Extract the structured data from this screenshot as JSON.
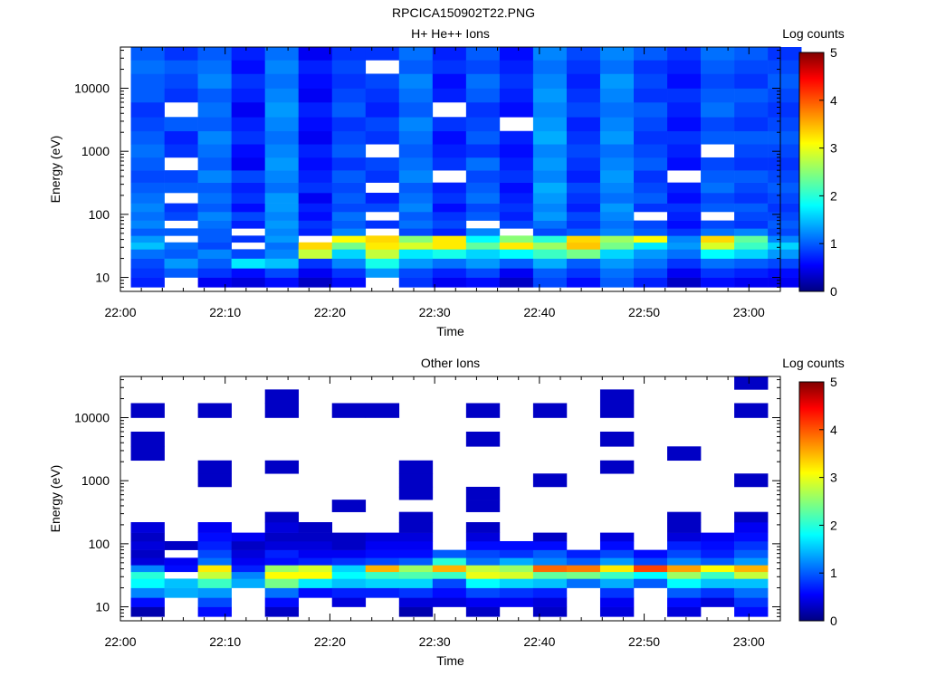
{
  "page_title": "RPCICA150902T22.PNG",
  "chart_data": [
    {
      "type": "heatmap",
      "title": "H+ He++ Ions",
      "xlabel": "Time",
      "ylabel": "Energy (eV)",
      "x_ticks": [
        "22:00",
        "22:10",
        "22:20",
        "22:30",
        "22:40",
        "22:50",
        "23:00"
      ],
      "x_range_minutes": [
        0,
        63
      ],
      "y_scale": "log",
      "y_range": [
        6,
        45000
      ],
      "y_ticks": [
        {
          "value": 10,
          "label": "10"
        },
        {
          "value": 100,
          "label": "100"
        },
        {
          "value": 1000,
          "label": "1000"
        },
        {
          "value": 10000,
          "label": "10000"
        }
      ],
      "colorbar": {
        "label": "Log counts",
        "min": 0,
        "max": 5,
        "ticks": [
          "0",
          "1",
          "2",
          "3",
          "4",
          "5"
        ],
        "colormap": "jet"
      },
      "time_bins_minutes": [
        1,
        4.2,
        7.4,
        10.6,
        13.8,
        17,
        20.2,
        23.4,
        26.6,
        29.8,
        33,
        36.2,
        39.4,
        42.6,
        45.8,
        49,
        52.2,
        55.4,
        58.6,
        61.8
      ],
      "energy_bins_eV": [
        7,
        10,
        14,
        20,
        28,
        36,
        46,
        60,
        80,
        110,
        150,
        220,
        320,
        500,
        800,
        1300,
        2100,
        3500,
        6000,
        10000,
        17000,
        28000,
        45000
      ],
      "log_counts": [
        [
          0.7,
          0.8,
          0.9,
          1.1,
          1.5,
          1.3,
          1.0,
          1.2,
          1.1,
          1.2,
          1.1,
          1.0,
          0.9,
          1.0,
          1.1,
          1.0,
          0.9,
          0.8,
          1.0,
          1.0,
          1.1,
          1.0
        ],
        [
          null,
          1.0,
          1.3,
          1.0,
          1.1,
          null,
          1.0,
          null,
          0.9,
          0.8,
          null,
          1.0,
          0.9,
          null,
          0.8,
          0.7,
          1.0,
          null,
          0.8,
          0.9,
          1.0,
          0.8
        ],
        [
          0.5,
          0.8,
          1.0,
          1.2,
          0.9,
          1.0,
          1.0,
          1.1,
          1.2,
          1.0,
          1.1,
          1.0,
          1.2,
          1.0,
          1.1,
          1.2,
          1.0,
          1.1,
          1.0,
          1.2,
          1.1,
          1.0
        ],
        [
          0.4,
          0.6,
          1.7,
          0.9,
          null,
          0.8,
          null,
          0.7,
          0.9,
          0.6,
          0.8,
          0.7,
          0.9,
          0.5,
          0.6,
          0.8,
          0.7,
          0.5,
          0.7,
          0.8,
          0.6,
          0.7
        ],
        [
          0.6,
          0.9,
          1.5,
          1.2,
          1.1,
          1.3,
          1.2,
          1.3,
          1.2,
          1.3,
          1.3,
          1.1,
          1.2,
          1.3,
          1.2,
          1.1,
          1.2,
          1.3,
          1.2,
          1.1,
          1.2,
          1.1
        ],
        [
          0.3,
          0.5,
          0.8,
          2.8,
          3.3,
          null,
          0.7,
          0.8,
          0.6,
          0.7,
          0.5,
          0.8,
          0.7,
          0.6,
          0.7,
          0.5,
          0.6,
          0.7,
          0.5,
          0.6,
          0.7,
          0.5
        ],
        [
          0.6,
          0.8,
          1.2,
          1.6,
          2.4,
          3.1,
          1.2,
          1.0,
          1.1,
          0.9,
          1.0,
          0.9,
          1.0,
          0.8,
          1.0,
          0.9,
          0.8,
          1.0,
          0.9,
          0.8,
          0.9,
          0.8
        ],
        [
          null,
          1.3,
          1.9,
          2.8,
          3.2,
          3.3,
          null,
          0.8,
          null,
          0.9,
          0.7,
          null,
          0.8,
          0.9,
          null,
          0.8,
          0.9,
          0.7,
          0.8,
          0.9,
          null,
          0.8
        ],
        [
          0.8,
          0.9,
          1.3,
          1.7,
          2.9,
          2.5,
          0.9,
          1.1,
          1.0,
          1.2,
          1.1,
          1.0,
          1.2,
          1.1,
          1.0,
          1.1,
          1.2,
          1.0,
          1.1,
          1.2,
          1.0,
          1.1
        ],
        [
          0.5,
          0.7,
          1.1,
          1.9,
          3.2,
          3.2,
          0.7,
          0.9,
          0.8,
          0.6,
          0.8,
          0.7,
          null,
          0.8,
          0.7,
          0.6,
          0.8,
          null,
          0.7,
          0.6,
          0.8,
          0.7
        ],
        [
          0.6,
          0.9,
          1.3,
          1.6,
          2.3,
          1.8,
          1.2,
          null,
          1.0,
          0.9,
          1.1,
          1.0,
          0.9,
          1.1,
          0.8,
          1.0,
          0.9,
          0.8,
          1.0,
          1.1,
          0.9,
          1.0
        ],
        [
          0.3,
          0.5,
          1.0,
          1.8,
          3.2,
          2.5,
          null,
          0.9,
          0.7,
          0.8,
          0.7,
          0.6,
          0.8,
          0.7,
          0.6,
          0.7,
          null,
          0.6,
          0.7,
          0.8,
          0.7,
          0.6
        ],
        [
          0.9,
          1.0,
          1.4,
          2.1,
          2.6,
          2.0,
          0.9,
          1.1,
          1.3,
          1.2,
          1.3,
          1.4,
          1.2,
          1.3,
          1.2,
          1.4,
          1.3,
          1.2,
          1.3,
          1.2,
          1.1,
          1.2
        ],
        [
          0.6,
          0.8,
          1.0,
          2.4,
          3.4,
          3.3,
          1.0,
          0.8,
          0.9,
          0.7,
          0.8,
          0.9,
          0.7,
          0.8,
          0.9,
          0.8,
          0.7,
          0.9,
          0.8,
          0.7,
          0.8,
          0.9
        ],
        [
          1.0,
          1.1,
          1.3,
          1.6,
          2.4,
          2.6,
          1.2,
          1.1,
          1.2,
          1.3,
          1.1,
          1.2,
          1.3,
          1.2,
          1.1,
          1.3,
          1.2,
          1.1,
          1.2,
          1.3,
          1.1,
          1.2
        ],
        [
          0.7,
          0.9,
          1.1,
          1.3,
          1.7,
          3.1,
          1.0,
          0.9,
          null,
          0.8,
          1.0,
          0.9,
          0.8,
          1.0,
          0.9,
          0.8,
          0.9,
          1.0,
          0.8,
          0.9,
          0.8,
          1.0
        ],
        [
          0.3,
          0.5,
          0.8,
          1.1,
          1.3,
          1.2,
          0.8,
          0.6,
          0.7,
          0.8,
          0.6,
          0.7,
          null,
          0.6,
          0.7,
          0.8,
          0.6,
          0.7,
          0.8,
          0.6,
          0.7,
          0.8
        ],
        [
          0.6,
          0.8,
          1.1,
          1.8,
          2.9,
          3.3,
          1.1,
          0.9,
          null,
          1.0,
          0.9,
          1.1,
          1.0,
          0.9,
          null,
          1.0,
          0.9,
          1.1,
          1.0,
          0.9,
          1.0,
          1.1
        ],
        [
          0.5,
          0.7,
          1.0,
          1.6,
          2.1,
          2.3,
          1.2,
          0.8,
          0.9,
          1.0,
          0.8,
          0.9,
          1.0,
          0.8,
          0.9,
          1.0,
          0.8,
          0.9,
          1.0,
          0.8,
          0.9,
          1.0
        ],
        [
          0.5,
          0.6,
          0.9,
          1.3,
          1.6,
          1.2,
          0.9,
          1.0,
          0.9,
          0.8,
          0.9,
          1.0,
          0.9,
          0.8,
          0.9,
          1.0,
          0.9,
          0.8,
          0.9,
          1.0,
          0.9,
          0.8
        ]
      ]
    },
    {
      "type": "heatmap",
      "title": "Other Ions",
      "xlabel": "Time",
      "ylabel": "Energy (eV)",
      "x_ticks": [
        "22:00",
        "22:10",
        "22:20",
        "22:30",
        "22:40",
        "22:50",
        "23:00"
      ],
      "x_range_minutes": [
        0,
        63
      ],
      "y_scale": "log",
      "y_range": [
        6,
        45000
      ],
      "y_ticks": [
        {
          "value": 10,
          "label": "10"
        },
        {
          "value": 100,
          "label": "100"
        },
        {
          "value": 1000,
          "label": "1000"
        },
        {
          "value": 10000,
          "label": "10000"
        }
      ],
      "colorbar": {
        "label": "Log counts",
        "min": 0,
        "max": 5,
        "ticks": [
          "0",
          "1",
          "2",
          "3",
          "4",
          "5"
        ],
        "colormap": "jet"
      },
      "time_bins_minutes": [
        1,
        4.2,
        7.4,
        10.6,
        13.8,
        17,
        20.2,
        23.4,
        26.6,
        29.8,
        33,
        36.2,
        39.4,
        42.6,
        45.8,
        49,
        52.2,
        55.4,
        58.6,
        61.8
      ],
      "energy_bins_eV": [
        7,
        10,
        14,
        20,
        28,
        36,
        46,
        60,
        80,
        110,
        150,
        220,
        320,
        500,
        800,
        1300,
        2100,
        3500,
        6000,
        10000,
        17000,
        28000,
        45000
      ],
      "log_counts": [
        [
          0.2,
          0.6,
          1.2,
          1.8,
          2.0,
          1.2,
          0.4,
          0.3,
          0.4,
          0.3,
          0.4,
          null,
          null,
          null,
          null,
          null,
          0.3,
          0.3,
          null,
          0.3,
          null,
          null
        ],
        [
          null,
          null,
          1.4,
          1.5,
          null,
          0.6,
          0.5,
          null,
          0.3,
          null,
          null,
          null,
          null,
          null,
          null,
          null,
          null,
          null,
          null,
          null,
          null,
          null
        ],
        [
          0.6,
          0.9,
          1.3,
          2.1,
          2.8,
          3.2,
          1.1,
          0.9,
          0.7,
          0.6,
          0.5,
          null,
          null,
          null,
          0.3,
          0.3,
          null,
          null,
          null,
          0.3,
          null,
          null
        ],
        [
          null,
          null,
          null,
          1.4,
          1.2,
          0.7,
          0.5,
          0.4,
          0.3,
          0.5,
          null,
          null,
          null,
          null,
          null,
          null,
          null,
          null,
          null,
          null,
          null,
          null
        ],
        [
          0.3,
          0.6,
          1.1,
          2.4,
          3.1,
          2.6,
          0.6,
          0.7,
          0.4,
          0.3,
          0.4,
          0.3,
          null,
          null,
          null,
          0.3,
          null,
          null,
          null,
          0.3,
          0.3,
          null
        ],
        [
          null,
          null,
          0.6,
          1.7,
          3.1,
          2.9,
          0.7,
          0.5,
          0.4,
          0.3,
          0.3,
          null,
          null,
          null,
          null,
          null,
          null,
          null,
          null,
          null,
          null,
          null
        ],
        [
          null,
          0.4,
          0.7,
          1.5,
          1.8,
          1.6,
          0.8,
          0.5,
          0.3,
          0.3,
          null,
          null,
          0.3,
          null,
          null,
          null,
          null,
          null,
          null,
          0.3,
          null,
          null
        ],
        [
          null,
          null,
          0.7,
          1.6,
          2.1,
          3.5,
          0.9,
          0.6,
          0.5,
          0.4,
          null,
          null,
          null,
          null,
          null,
          null,
          null,
          null,
          null,
          0.3,
          null,
          null
        ],
        [
          0.2,
          0.4,
          0.8,
          1.6,
          2.2,
          2.6,
          1.0,
          0.6,
          0.5,
          0.4,
          0.3,
          0.3,
          null,
          0.3,
          0.3,
          0.3,
          null,
          null,
          null,
          null,
          null,
          null
        ],
        [
          null,
          0.4,
          0.6,
          0.9,
          2.1,
          3.5,
          2.0,
          1.0,
          null,
          null,
          null,
          null,
          null,
          null,
          null,
          null,
          null,
          null,
          null,
          null,
          null,
          null
        ],
        [
          0.3,
          0.5,
          0.9,
          1.8,
          3.0,
          2.8,
          1.1,
          0.9,
          0.6,
          0.4,
          0.3,
          null,
          0.3,
          0.3,
          null,
          null,
          null,
          0.3,
          null,
          0.3,
          null,
          null
        ],
        [
          null,
          0.5,
          0.8,
          1.6,
          2.9,
          2.6,
          1.4,
          0.8,
          0.6,
          null,
          null,
          null,
          null,
          null,
          null,
          null,
          null,
          null,
          null,
          null,
          null,
          null
        ],
        [
          0.3,
          0.4,
          0.7,
          1.5,
          2.3,
          3.9,
          1.2,
          1.0,
          0.6,
          0.3,
          null,
          null,
          null,
          null,
          0.3,
          null,
          null,
          null,
          null,
          0.3,
          null,
          null
        ],
        [
          null,
          null,
          null,
          1.1,
          2.4,
          3.8,
          1.0,
          0.7,
          null,
          null,
          null,
          null,
          null,
          null,
          null,
          null,
          null,
          null,
          null,
          null,
          null,
          null
        ],
        [
          0.4,
          0.5,
          0.8,
          1.4,
          2.1,
          3.2,
          1.3,
          0.9,
          0.6,
          0.4,
          null,
          null,
          null,
          null,
          null,
          0.3,
          null,
          0.3,
          null,
          0.3,
          0.3,
          null
        ],
        [
          null,
          null,
          null,
          1.0,
          1.8,
          4.1,
          0.9,
          0.6,
          null,
          null,
          null,
          null,
          null,
          null,
          null,
          null,
          null,
          null,
          null,
          null,
          null,
          null
        ],
        [
          0.4,
          0.6,
          1.0,
          1.8,
          2.6,
          3.6,
          1.2,
          0.9,
          0.7,
          0.4,
          0.3,
          0.3,
          null,
          null,
          null,
          null,
          0.3,
          null,
          null,
          null,
          null,
          null
        ],
        [
          null,
          0.4,
          0.8,
          1.5,
          2.1,
          3.1,
          1.0,
          0.7,
          0.6,
          0.5,
          null,
          null,
          null,
          null,
          null,
          null,
          null,
          null,
          null,
          null,
          null,
          null
        ],
        [
          0.6,
          0.8,
          1.1,
          1.5,
          2.8,
          3.5,
          1.3,
          1.0,
          0.8,
          0.6,
          0.5,
          0.3,
          null,
          null,
          0.3,
          null,
          null,
          null,
          null,
          0.3,
          null,
          0.3
        ],
        [
          null,
          null,
          null,
          null,
          null,
          null,
          null,
          null,
          null,
          null,
          null,
          null,
          null,
          null,
          null,
          null,
          null,
          null,
          null,
          null,
          null,
          null
        ]
      ]
    }
  ]
}
